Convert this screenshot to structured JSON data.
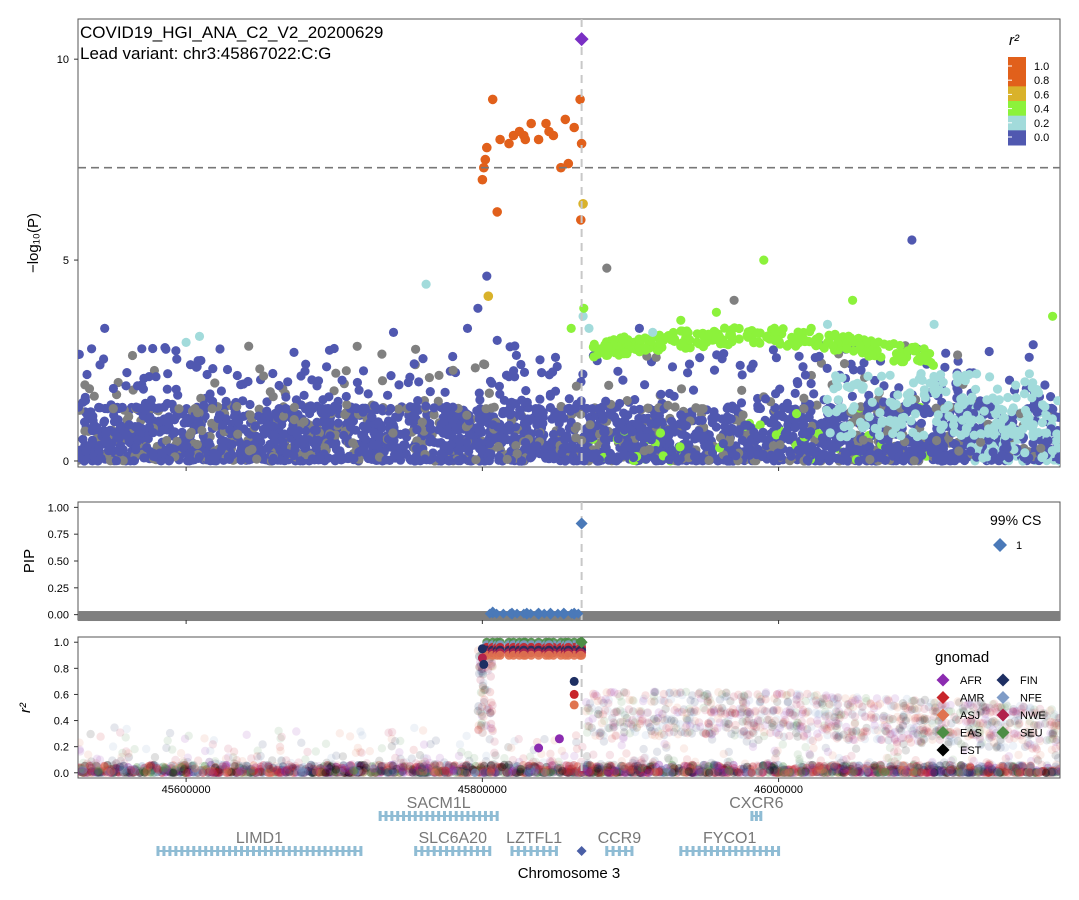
{
  "chart_data": [
    {
      "type": "scatter",
      "title": "COVID19_HGI_ANA_C2_V2_20200629",
      "subtitle": "Lead variant: chr3:45867022:C:G",
      "ylabel": "−log₁₀(P)",
      "xlim": [
        45527000,
        46190000
      ],
      "ylim": [
        -0.15,
        11
      ],
      "yticks": [
        0,
        5,
        10
      ],
      "threshold": 7.3,
      "lead_x": 45867022,
      "lead_y": 10.5,
      "lead_color": "#7a2fc4",
      "legend": {
        "title": "r²",
        "placement": "top-right",
        "labels": [
          "1.0",
          "0.8",
          "0.6",
          "0.4",
          "0.2",
          "0.0"
        ],
        "colors": [
          "#e1601b",
          "#e8a62a",
          "#a3ec3b",
          "#9fd6d6",
          "#5563b3",
          "#5563b3"
        ]
      },
      "colors": {
        "high": "#e1601b",
        "mid_high": "#d9b22a",
        "mid": "#8cf23b",
        "low": "#a2dbdb",
        "vlow": "#5058b0",
        "na": "#808080"
      },
      "series": [
        {
          "group": "high",
          "x": [
            45800000,
            45801000,
            45803000,
            45807000,
            45810000,
            45818000,
            45821000,
            45825000,
            45829000,
            45833000,
            45838000,
            45843000,
            45848000,
            45853000,
            45856000,
            45862000,
            45866000,
            45867000,
            45866500,
            45802000,
            45812000,
            45828000,
            45845000,
            45858000
          ],
          "y": [
            7.0,
            7.3,
            7.8,
            9.0,
            6.2,
            7.9,
            8.1,
            8.2,
            8.0,
            8.4,
            8.0,
            8.4,
            8.1,
            7.3,
            8.5,
            8.3,
            9.0,
            7.9,
            6.0,
            7.5,
            8.0,
            8.1,
            8.2,
            7.4
          ]
        },
        {
          "group": "mid_high",
          "x": [
            45804000,
            45868000
          ],
          "y": [
            4.1,
            6.4
          ]
        }
      ],
      "cs_x": [
        45867022
      ],
      "cs_y": [
        10.5
      ]
    },
    {
      "type": "scatter",
      "ylabel": "PIP",
      "ylim": [
        -0.05,
        1.05
      ],
      "yticks": [
        "0.00",
        "0.25",
        "0.50",
        "0.75",
        "1.00"
      ],
      "x": [
        45867022,
        45807000,
        45820000,
        45830000,
        45838000,
        45846000,
        45855000,
        45862000
      ],
      "y": [
        0.85,
        0.02,
        0.01,
        0.01,
        0.01,
        0.01,
        0.01,
        0.01
      ],
      "cs_color": "#4a79b8",
      "legend": {
        "title": "99% CS",
        "labels": [
          "1"
        ],
        "placement": "top-right"
      }
    },
    {
      "type": "scatter",
      "ylabel": "r²",
      "xlabel": "Chromosome 3",
      "ylim": [
        -0.04,
        1.04
      ],
      "yticks": [
        "0.0",
        "0.2",
        "0.4",
        "0.6",
        "0.8",
        "1.0"
      ],
      "xticks": [
        "45600000",
        "45800000",
        "46000000"
      ],
      "xtick_values": [
        45600000,
        45800000,
        46000000
      ],
      "legend": {
        "title": "gnomad",
        "placement": "right",
        "labels": [
          "AFR",
          "FIN",
          "AMR",
          "NFE",
          "ASJ",
          "NWE",
          "EAS",
          "SEU",
          "EST"
        ],
        "colors": [
          "#8b2bb0",
          "#1e2f63",
          "#c8252b",
          "#7f9cc7",
          "#e07450",
          "#b2224c",
          "#4d8d46",
          "#4d8d46",
          "#000000"
        ]
      },
      "lead_x": 45867022
    }
  ],
  "genes": [
    {
      "name": "SACM1L",
      "start": 45731000,
      "end": 45810000,
      "row": 0
    },
    {
      "name": "CXCR6",
      "start": 45982000,
      "end": 45988000,
      "row": 0
    },
    {
      "name": "LIMD1",
      "start": 45581000,
      "end": 45718000,
      "row": 1
    },
    {
      "name": "SLC6A20",
      "start": 45755000,
      "end": 45805000,
      "row": 1
    },
    {
      "name": "LZTFL1",
      "start": 45820000,
      "end": 45850000,
      "row": 1
    },
    {
      "name": "CCR9",
      "start": 45884000,
      "end": 45901000,
      "row": 1
    },
    {
      "name": "FYCO1",
      "start": 45934000,
      "end": 46000000,
      "row": 1
    }
  ]
}
